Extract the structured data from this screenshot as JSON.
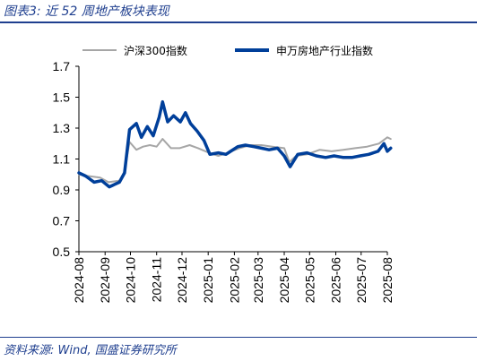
{
  "header": {
    "title": "图表3:  近 52 周地产板块表现"
  },
  "footer": {
    "source": "资料来源:  Wind,  国盛证券研究所"
  },
  "colors": {
    "hs300": "#a6a6a6",
    "sw_real_estate": "#003f9a",
    "brand": "#1f3f8f"
  },
  "chart_data": {
    "type": "line",
    "title": "",
    "xlabel": "",
    "ylabel": "",
    "ylim": [
      0.5,
      1.7
    ],
    "yticks": [
      "0.5",
      "0.7",
      "0.9",
      "1.1",
      "1.3",
      "1.5",
      "1.7"
    ],
    "xticks": [
      "2024-08",
      "2024-09",
      "2024-10",
      "2024-11",
      "2024-12",
      "2025-01",
      "2025-02",
      "2025-03",
      "2025-04",
      "2025-05",
      "2025-06",
      "2025-07",
      "2025-08"
    ],
    "legend_position": "top",
    "series": [
      {
        "name": "沪深300指数",
        "x": [
          "2024-08-01",
          "2024-08-12",
          "2024-08-26",
          "2024-09-05",
          "2024-09-18",
          "2024-09-24",
          "2024-09-30",
          "2024-10-08",
          "2024-10-16",
          "2024-10-24",
          "2024-11-01",
          "2024-11-08",
          "2024-11-18",
          "2024-11-28",
          "2024-12-10",
          "2024-12-20",
          "2025-01-02",
          "2025-01-13",
          "2025-01-24",
          "2025-02-07",
          "2025-02-20",
          "2025-03-05",
          "2025-03-18",
          "2025-04-01",
          "2025-04-07",
          "2025-04-15",
          "2025-04-28",
          "2025-05-13",
          "2025-05-27",
          "2025-06-10",
          "2025-06-24",
          "2025-07-08",
          "2025-07-22",
          "2025-08-01",
          "2025-08-05"
        ],
        "values": [
          1.0,
          0.99,
          0.98,
          0.95,
          0.96,
          1.02,
          1.21,
          1.16,
          1.18,
          1.19,
          1.18,
          1.23,
          1.17,
          1.17,
          1.19,
          1.17,
          1.14,
          1.12,
          1.14,
          1.17,
          1.19,
          1.19,
          1.18,
          1.17,
          1.08,
          1.12,
          1.13,
          1.16,
          1.15,
          1.16,
          1.17,
          1.18,
          1.2,
          1.24,
          1.23
        ]
      },
      {
        "name": "申万房地产行业指数",
        "x": [
          "2024-08-01",
          "2024-08-09",
          "2024-08-19",
          "2024-08-28",
          "2024-09-06",
          "2024-09-18",
          "2024-09-24",
          "2024-09-30",
          "2024-10-08",
          "2024-10-14",
          "2024-10-21",
          "2024-10-28",
          "2024-11-04",
          "2024-11-08",
          "2024-11-14",
          "2024-11-21",
          "2024-11-29",
          "2024-12-05",
          "2024-12-11",
          "2024-12-19",
          "2024-12-27",
          "2025-01-03",
          "2025-01-13",
          "2025-01-22",
          "2025-02-05",
          "2025-02-14",
          "2025-02-24",
          "2025-03-05",
          "2025-03-14",
          "2025-03-24",
          "2025-04-01",
          "2025-04-08",
          "2025-04-17",
          "2025-04-28",
          "2025-05-09",
          "2025-05-20",
          "2025-05-30",
          "2025-06-10",
          "2025-06-20",
          "2025-06-30",
          "2025-07-10",
          "2025-07-21",
          "2025-07-28",
          "2025-08-01",
          "2025-08-05"
        ],
        "values": [
          1.01,
          0.99,
          0.95,
          0.96,
          0.92,
          0.95,
          1.01,
          1.29,
          1.33,
          1.24,
          1.31,
          1.25,
          1.37,
          1.47,
          1.34,
          1.38,
          1.34,
          1.4,
          1.33,
          1.28,
          1.22,
          1.13,
          1.14,
          1.13,
          1.18,
          1.19,
          1.18,
          1.17,
          1.16,
          1.17,
          1.12,
          1.05,
          1.13,
          1.14,
          1.12,
          1.11,
          1.12,
          1.11,
          1.11,
          1.12,
          1.13,
          1.15,
          1.2,
          1.15,
          1.17
        ]
      }
    ]
  }
}
